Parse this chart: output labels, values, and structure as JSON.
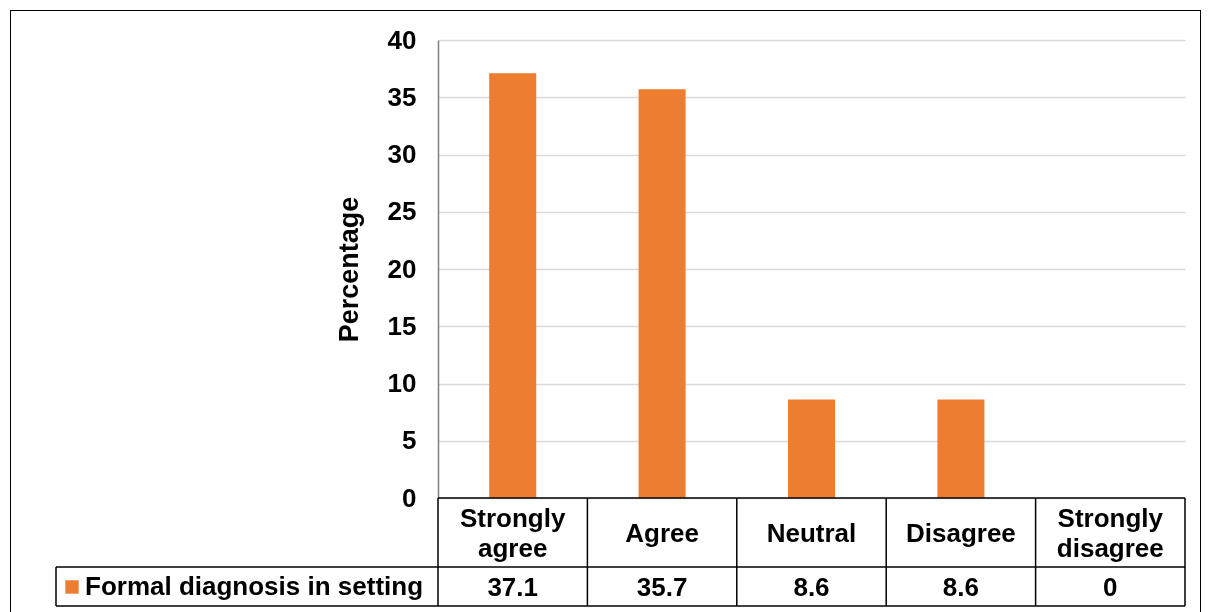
{
  "chart_data": {
    "type": "bar",
    "ylabel": "Percentage",
    "categories": [
      "Strongly agree",
      "Agree",
      "Neutral",
      "Disagree",
      "Strongly disagree"
    ],
    "series": [
      {
        "name": "Formal diagnosis in setting",
        "color": "#ed7d31",
        "values": [
          37.1,
          35.7,
          8.6,
          8.6,
          0
        ]
      }
    ],
    "ylim": [
      0,
      40
    ],
    "yticks": [
      0,
      5,
      10,
      15,
      20,
      25,
      30,
      35,
      40
    ],
    "grid": "y",
    "legend": "bottom left",
    "data_labels": true
  }
}
